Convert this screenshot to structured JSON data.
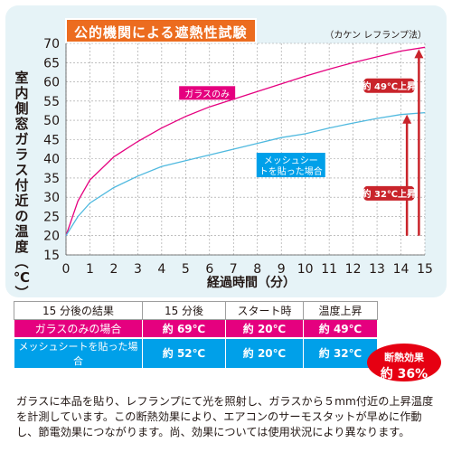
{
  "header": {
    "title": "公的機関による遮熱性試験",
    "method_note": "（カケン レフランプ法）"
  },
  "chart_data": {
    "type": "line",
    "title": "公的機関による遮熱性試験",
    "xlabel": "経過時間（分）",
    "ylabel": "室内側窓ガラス付近の温度（℃）",
    "xlim": [
      0,
      15
    ],
    "ylim": [
      15,
      70
    ],
    "x_ticks": [
      0,
      1,
      2,
      3,
      4,
      5,
      6,
      7,
      8,
      9,
      10,
      11,
      12,
      13,
      14,
      15
    ],
    "y_ticks": [
      15,
      20,
      25,
      30,
      35,
      40,
      45,
      50,
      55,
      60,
      65,
      70
    ],
    "series": [
      {
        "name": "ガラスのみ",
        "color": "#e5007f",
        "points": [
          [
            0,
            20
          ],
          [
            0.5,
            29
          ],
          [
            1,
            34.5
          ],
          [
            2,
            40.5
          ],
          [
            3,
            44.5
          ],
          [
            4,
            48
          ],
          [
            5,
            51
          ],
          [
            6,
            53.5
          ],
          [
            7,
            55.5
          ],
          [
            8,
            57.5
          ],
          [
            9,
            59.5
          ],
          [
            10,
            61.5
          ],
          [
            11,
            63.3
          ],
          [
            12,
            65
          ],
          [
            13,
            66.5
          ],
          [
            14,
            68
          ],
          [
            15,
            69
          ]
        ]
      },
      {
        "name": "メッシュシートを貼った場合",
        "color": "#4fb9df",
        "points": [
          [
            0,
            20
          ],
          [
            0.5,
            25
          ],
          [
            1,
            28.5
          ],
          [
            2,
            32.5
          ],
          [
            3,
            35.5
          ],
          [
            4,
            38
          ],
          [
            5,
            39.5
          ],
          [
            6,
            41
          ],
          [
            7,
            42.5
          ],
          [
            8,
            44
          ],
          [
            9,
            45.5
          ],
          [
            10,
            46.5
          ],
          [
            11,
            48
          ],
          [
            12,
            49.3
          ],
          [
            13,
            50.5
          ],
          [
            14,
            51.5
          ],
          [
            15,
            52
          ]
        ]
      }
    ],
    "annotations": [
      {
        "text": "約 49℃上昇",
        "color": "#c9242b"
      },
      {
        "text": "約 32℃上昇",
        "color": "#c9242b"
      }
    ]
  },
  "results_table": {
    "headers": [
      "15 分後の結果",
      "15 分後",
      "スタート時",
      "温度上昇"
    ],
    "rows": [
      {
        "label": "ガラスのみの場合",
        "after15": "約 69℃",
        "start": "約 20℃",
        "rise": "約 49℃",
        "color": "#e5007f"
      },
      {
        "label": "メッシュシートを貼った場合",
        "after15": "約 52℃",
        "start": "約 20℃",
        "rise": "約 32℃",
        "color": "#00a0e9"
      }
    ]
  },
  "badge": {
    "line1": "断熱効果",
    "line2": "約 36%"
  },
  "footnote": "ガラスに本品を貼り、レフランプにて光を照射し、ガラスから５mm付近の上昇温度を計測しています。この断熱効果により、エアコンのサーモスタットが早めに作動し、節電効果につながります。尚、効果については使用状況により異なります。"
}
